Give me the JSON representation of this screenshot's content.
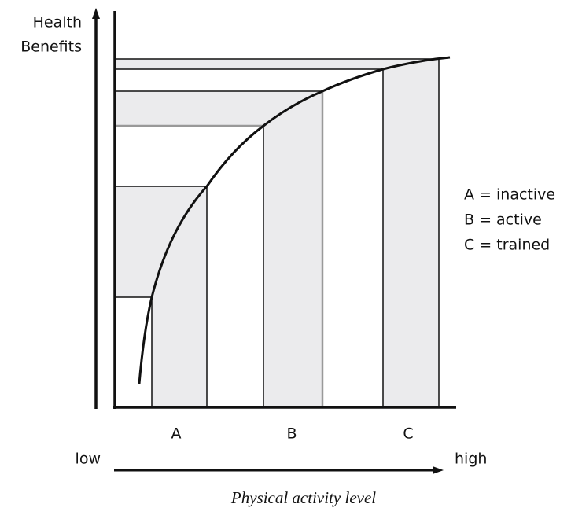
{
  "y_axis": {
    "label_lines": [
      "Health",
      "Benefits"
    ]
  },
  "bands": [
    {
      "label": "A"
    },
    {
      "label": "B"
    },
    {
      "label": "C"
    }
  ],
  "legend": [
    "A = inactive",
    "B = active",
    "C = trained"
  ],
  "x_axis": {
    "low": "low",
    "high": "high",
    "label": "Physical activity level"
  }
}
